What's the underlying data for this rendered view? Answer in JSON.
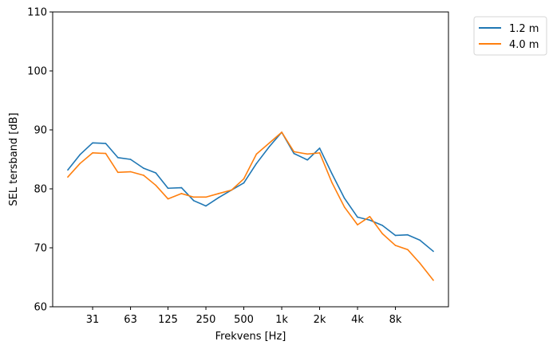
{
  "chart_data": {
    "type": "line",
    "xlabel": "Frekvens [Hz]",
    "ylabel": "SEL tersband [dB]",
    "ylim": [
      60,
      110
    ],
    "yticks": [
      60,
      70,
      80,
      90,
      100,
      110
    ],
    "x_scale": "log",
    "xticks": [
      {
        "value": 31.5,
        "label": "31"
      },
      {
        "value": 63,
        "label": "63"
      },
      {
        "value": 125,
        "label": "125"
      },
      {
        "value": 250,
        "label": "250"
      },
      {
        "value": 500,
        "label": "500"
      },
      {
        "value": 1000,
        "label": "1k"
      },
      {
        "value": 2000,
        "label": "2k"
      },
      {
        "value": 4000,
        "label": "4k"
      },
      {
        "value": 8000,
        "label": "8k"
      }
    ],
    "grid": false,
    "legend_position": "outside-top-right",
    "x": [
      20,
      25,
      31.5,
      40,
      50,
      63,
      80,
      100,
      125,
      160,
      200,
      250,
      315,
      400,
      500,
      630,
      800,
      1000,
      1250,
      1600,
      2000,
      2500,
      3150,
      4000,
      5000,
      6300,
      8000,
      10000,
      12500,
      16000
    ],
    "series": [
      {
        "name": "1.2 m",
        "color": "#1f77b4",
        "values": [
          83.2,
          85.8,
          87.8,
          87.7,
          85.3,
          85.0,
          83.5,
          82.7,
          80.1,
          80.2,
          78.0,
          77.1,
          78.5,
          79.8,
          81.0,
          84.3,
          87.2,
          89.6,
          86.0,
          84.9,
          86.9,
          82.6,
          78.4,
          75.2,
          74.7,
          73.8,
          72.1,
          72.2,
          71.3,
          69.4
        ]
      },
      {
        "name": "4.0 m",
        "color": "#ff7f0e",
        "values": [
          82.0,
          84.3,
          86.1,
          86.0,
          82.8,
          82.9,
          82.3,
          80.6,
          78.3,
          79.2,
          78.6,
          78.6,
          79.2,
          79.8,
          81.7,
          85.9,
          87.8,
          89.6,
          86.3,
          85.9,
          86.1,
          81.1,
          76.9,
          73.9,
          75.3,
          72.4,
          70.4,
          69.7,
          67.4,
          64.5
        ]
      }
    ]
  }
}
